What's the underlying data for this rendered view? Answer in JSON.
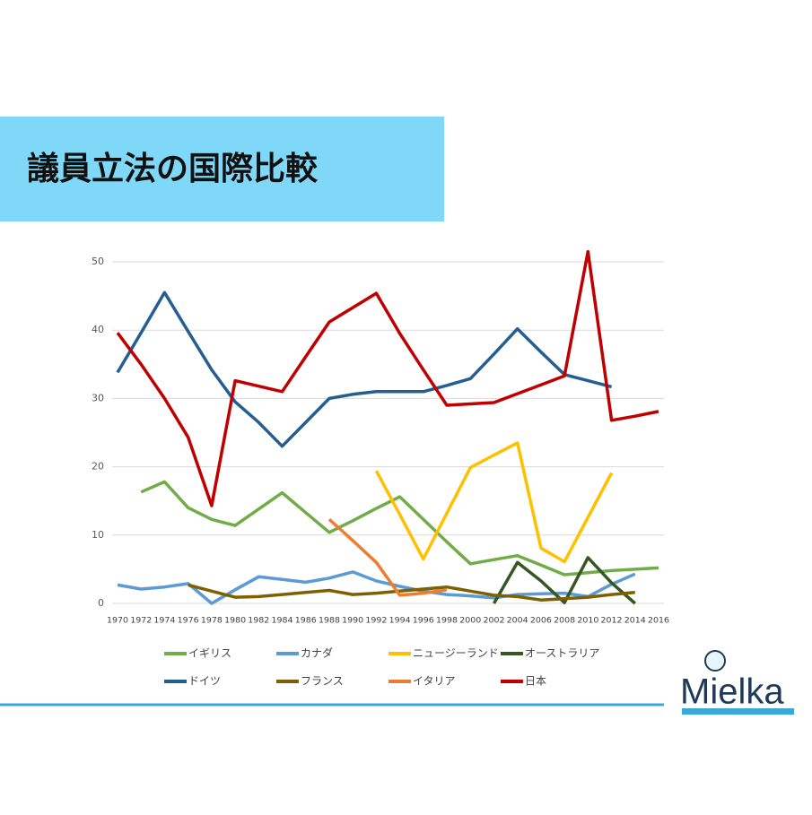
{
  "title": "議員立法の国際比較",
  "logo": "Mielka",
  "chart_data": {
    "type": "line",
    "x": [
      1970,
      1972,
      1974,
      1976,
      1978,
      1980,
      1982,
      1984,
      1986,
      1988,
      1990,
      1992,
      1994,
      1996,
      1998,
      2000,
      2002,
      2004,
      2006,
      2008,
      2010,
      2012,
      2014,
      2016
    ],
    "xlim": [
      1970,
      2016
    ],
    "xticks": [
      1970,
      1972,
      1974,
      1976,
      1978,
      1980,
      1982,
      1984,
      1986,
      1988,
      1990,
      1992,
      1994,
      1996,
      1998,
      2000,
      2002,
      2004,
      2006,
      2008,
      2010,
      2012,
      2014,
      2016
    ],
    "ylim": [
      0,
      50
    ],
    "yticks": [
      0,
      10,
      20,
      30,
      40,
      50
    ],
    "grid": true,
    "series": [
      {
        "name": "イギリス",
        "color": "#70ad47",
        "values": [
          null,
          16.3,
          17.8,
          14.0,
          12.3,
          11.4,
          13.8,
          16.2,
          13.3,
          10.4,
          12.1,
          13.9,
          15.6,
          12.3,
          9.0,
          5.8,
          6.4,
          7.0,
          5.6,
          4.2,
          4.5,
          4.8,
          5.0,
          5.2
        ]
      },
      {
        "name": "カナダ",
        "color": "#5b9bd5",
        "values": [
          2.7,
          2.1,
          2.4,
          2.9,
          0,
          2.0,
          3.9,
          3.5,
          3.1,
          3.7,
          4.6,
          3.3,
          2.5,
          1.8,
          1.3,
          1.1,
          0.8,
          1.3,
          1.4,
          1.5,
          1.0,
          2.8,
          4.3,
          null
        ]
      },
      {
        "name": "ニュージーランド",
        "color": "#ffc000",
        "values": [
          null,
          null,
          null,
          null,
          null,
          null,
          null,
          null,
          null,
          null,
          null,
          19.4,
          13.0,
          6.5,
          13.2,
          19.9,
          21.7,
          23.5,
          8.1,
          6.1,
          12.6,
          19.1,
          null,
          null
        ]
      },
      {
        "name": "オーストラリア",
        "color": "#375623",
        "values": [
          null,
          null,
          null,
          null,
          null,
          null,
          null,
          null,
          null,
          null,
          null,
          null,
          null,
          null,
          null,
          null,
          0,
          6.0,
          3.3,
          0.1,
          6.7,
          3.0,
          0,
          null
        ]
      },
      {
        "name": "ドイツ",
        "color": "#255e91",
        "values": [
          33.8,
          39.6,
          45.5,
          39.8,
          34.2,
          29.5,
          26.5,
          23.0,
          26.5,
          30.0,
          30.6,
          31.0,
          31.0,
          31.0,
          31.9,
          32.9,
          36.5,
          40.2,
          36.8,
          33.5,
          32.6,
          31.7,
          null,
          null
        ]
      },
      {
        "name": "フランス",
        "color": "#7f6000",
        "values": [
          null,
          null,
          null,
          2.7,
          1.8,
          0.9,
          1.0,
          1.3,
          1.6,
          1.9,
          1.3,
          1.5,
          1.8,
          2.1,
          2.4,
          1.8,
          1.2,
          1.0,
          0.5,
          0.7,
          0.9,
          1.3,
          1.6,
          null
        ]
      },
      {
        "name": "イタリア",
        "color": "#ed7d31",
        "values": [
          null,
          null,
          null,
          null,
          null,
          null,
          null,
          null,
          null,
          12.3,
          9.2,
          6.0,
          1.2,
          1.5,
          2.0,
          null,
          null,
          null,
          null,
          null,
          null,
          null,
          null,
          null
        ]
      },
      {
        "name": "日本",
        "color": "#c00000",
        "values": [
          39.6,
          35.0,
          30.0,
          24.3,
          14.3,
          32.6,
          31.8,
          31.0,
          36.1,
          41.2,
          43.3,
          45.4,
          39.5,
          34.2,
          29.0,
          29.2,
          29.4,
          30.7,
          32.0,
          33.3,
          51.5,
          26.8,
          27.4,
          28.1
        ]
      }
    ]
  }
}
